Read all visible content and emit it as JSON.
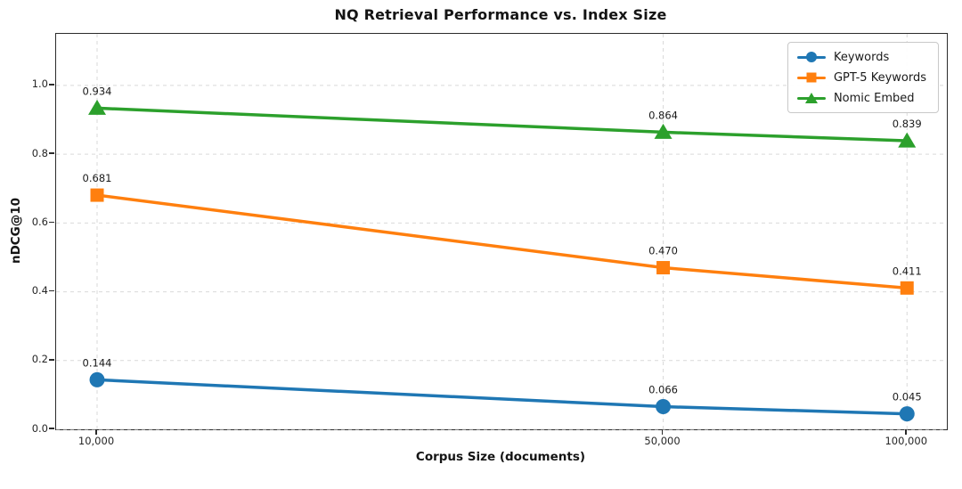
{
  "chart_data": {
    "type": "line",
    "title": "NQ Retrieval Performance vs. Index Size",
    "xlabel": "Corpus Size (documents)",
    "ylabel": "nDCG@10",
    "x_scale": "log",
    "x": [
      10000,
      50000,
      100000
    ],
    "x_tick_labels": [
      "10,000",
      "50,000",
      "100,000"
    ],
    "xlim": [
      8900,
      112000
    ],
    "ylim": [
      0,
      1.15
    ],
    "y_ticks": [
      0.0,
      0.2,
      0.4,
      0.6,
      0.8,
      1.0
    ],
    "y_tick_labels": [
      "0.0",
      "0.2",
      "0.4",
      "0.6",
      "0.8",
      "1.0"
    ],
    "grid": true,
    "grid_style": "dashed",
    "grid_color": "#d9d9d9",
    "legend_position": "upper right",
    "series": [
      {
        "name": "Keywords",
        "color": "#1f77b4",
        "marker": "circle",
        "values": [
          0.144,
          0.066,
          0.045
        ],
        "point_labels": [
          "0.144",
          "0.066",
          "0.045"
        ]
      },
      {
        "name": "GPT-5 Keywords",
        "color": "#ff7f0e",
        "marker": "square",
        "values": [
          0.681,
          0.47,
          0.411
        ],
        "point_labels": [
          "0.681",
          "0.470",
          "0.411"
        ]
      },
      {
        "name": "Nomic Embed",
        "color": "#2ca02c",
        "marker": "triangle",
        "values": [
          0.934,
          0.864,
          0.839
        ],
        "point_labels": [
          "0.934",
          "0.864",
          "0.839"
        ]
      }
    ]
  }
}
